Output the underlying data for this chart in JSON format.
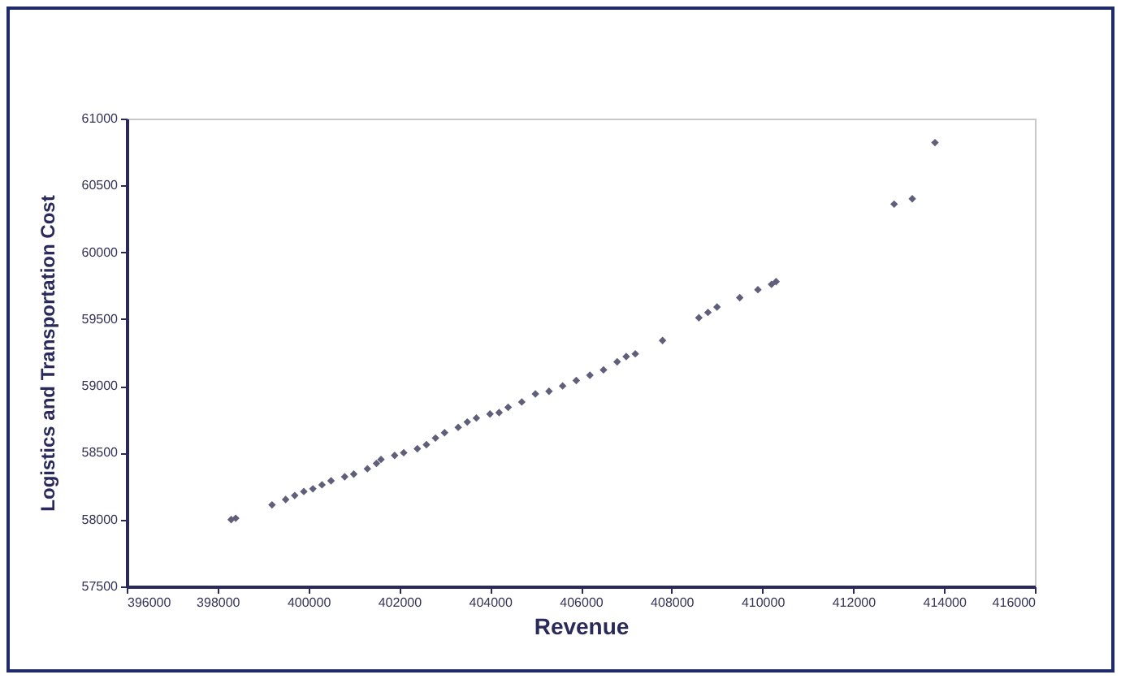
{
  "chart_data": {
    "type": "scatter",
    "xlabel": "Revenue",
    "ylabel": "Logistics and Transportation Cost",
    "marker": "diamond",
    "grid": false,
    "legend": false,
    "xlim": [
      396000,
      416000
    ],
    "xticks": [
      396000,
      398000,
      400000,
      402000,
      404000,
      406000,
      408000,
      410000,
      412000,
      414000,
      416000
    ],
    "ylim": [
      57500,
      61000
    ],
    "yticks": [
      57500,
      58000,
      58500,
      59000,
      59500,
      60000,
      60500,
      61000
    ],
    "series": [
      {
        "color": "#5f5f7a",
        "x": [
          398300,
          398400,
          399200,
          399500,
          399700,
          399900,
          400100,
          400300,
          400500,
          400800,
          401000,
          401300,
          401500,
          401600,
          401900,
          402100,
          402400,
          402600,
          402800,
          403000,
          403300,
          403500,
          403700,
          404000,
          404200,
          404400,
          404700,
          405000,
          405300,
          405600,
          405900,
          406200,
          406500,
          406800,
          407000,
          407200,
          407800,
          408600,
          408800,
          409000,
          409500,
          409900,
          410200,
          410300,
          412900,
          413300,
          413800
        ],
        "values": [
          58000,
          58010,
          58110,
          58150,
          58180,
          58210,
          58230,
          58260,
          58290,
          58320,
          58340,
          58380,
          58420,
          58450,
          58480,
          58500,
          58530,
          58560,
          58610,
          58650,
          58690,
          58730,
          58760,
          58790,
          58800,
          58840,
          58880,
          58940,
          58960,
          59000,
          59040,
          59080,
          59120,
          59180,
          59220,
          59240,
          59340,
          59510,
          59550,
          59590,
          59660,
          59720,
          59760,
          59780,
          60360,
          60400,
          60820
        ]
      }
    ]
  }
}
